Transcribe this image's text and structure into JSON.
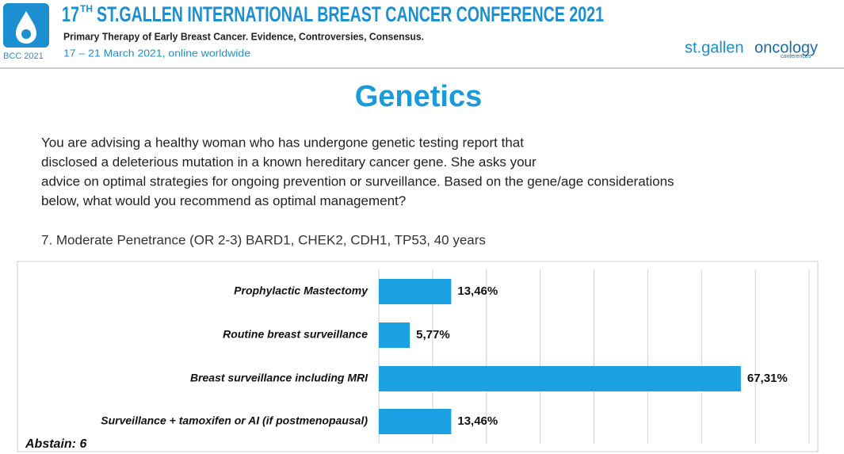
{
  "header": {
    "logo_text": "BCC 2021",
    "title_number": "17",
    "title_suffix": "TH",
    "title": "ST.GALLEN INTERNATIONAL BREAST CANCER CONFERENCE 2021",
    "subtitle": "Primary Therapy of Early Breast Cancer. Evidence, Controversies, Consensus.",
    "dates": "17 – 21 March 2021, online worldwide",
    "brand_left": "st.gallen",
    "brand_right": "oncology",
    "brand_small": "conferences"
  },
  "slide": {
    "heading": "Genetics",
    "question_lines": [
      "You are advising a healthy woman who has undergone genetic testing report that",
      "disclosed a deleterious mutation in a known hereditary cancer gene.  She asks your",
      "advice on optimal strategies for ongoing prevention or surveillance. Based on the gene/age considerations",
      "below, what would you recommend as optimal  management?"
    ],
    "item": "7. Moderate Penetrance (OR 2-3) BARD1, CHEK2, CDH1, TP53, 40 years"
  },
  "chart_data": {
    "type": "hbar",
    "categories": [
      "Prophylactic Mastectomy",
      "Routine breast surveillance",
      "Breast surveillance including MRI",
      "Surveillance + tamoxifen or AI (if postmenopausal)"
    ],
    "values": [
      13.46,
      5.77,
      67.31,
      13.46
    ],
    "value_labels": [
      "13,46%",
      "5,77%",
      "67,31%",
      "13,46%"
    ],
    "color": "#1ba1e2",
    "xlim": [
      0,
      80
    ],
    "xticks": [
      0,
      10,
      20,
      30,
      40,
      50,
      60,
      70,
      80
    ],
    "grid": true,
    "annotation": "Abstain: 6"
  }
}
